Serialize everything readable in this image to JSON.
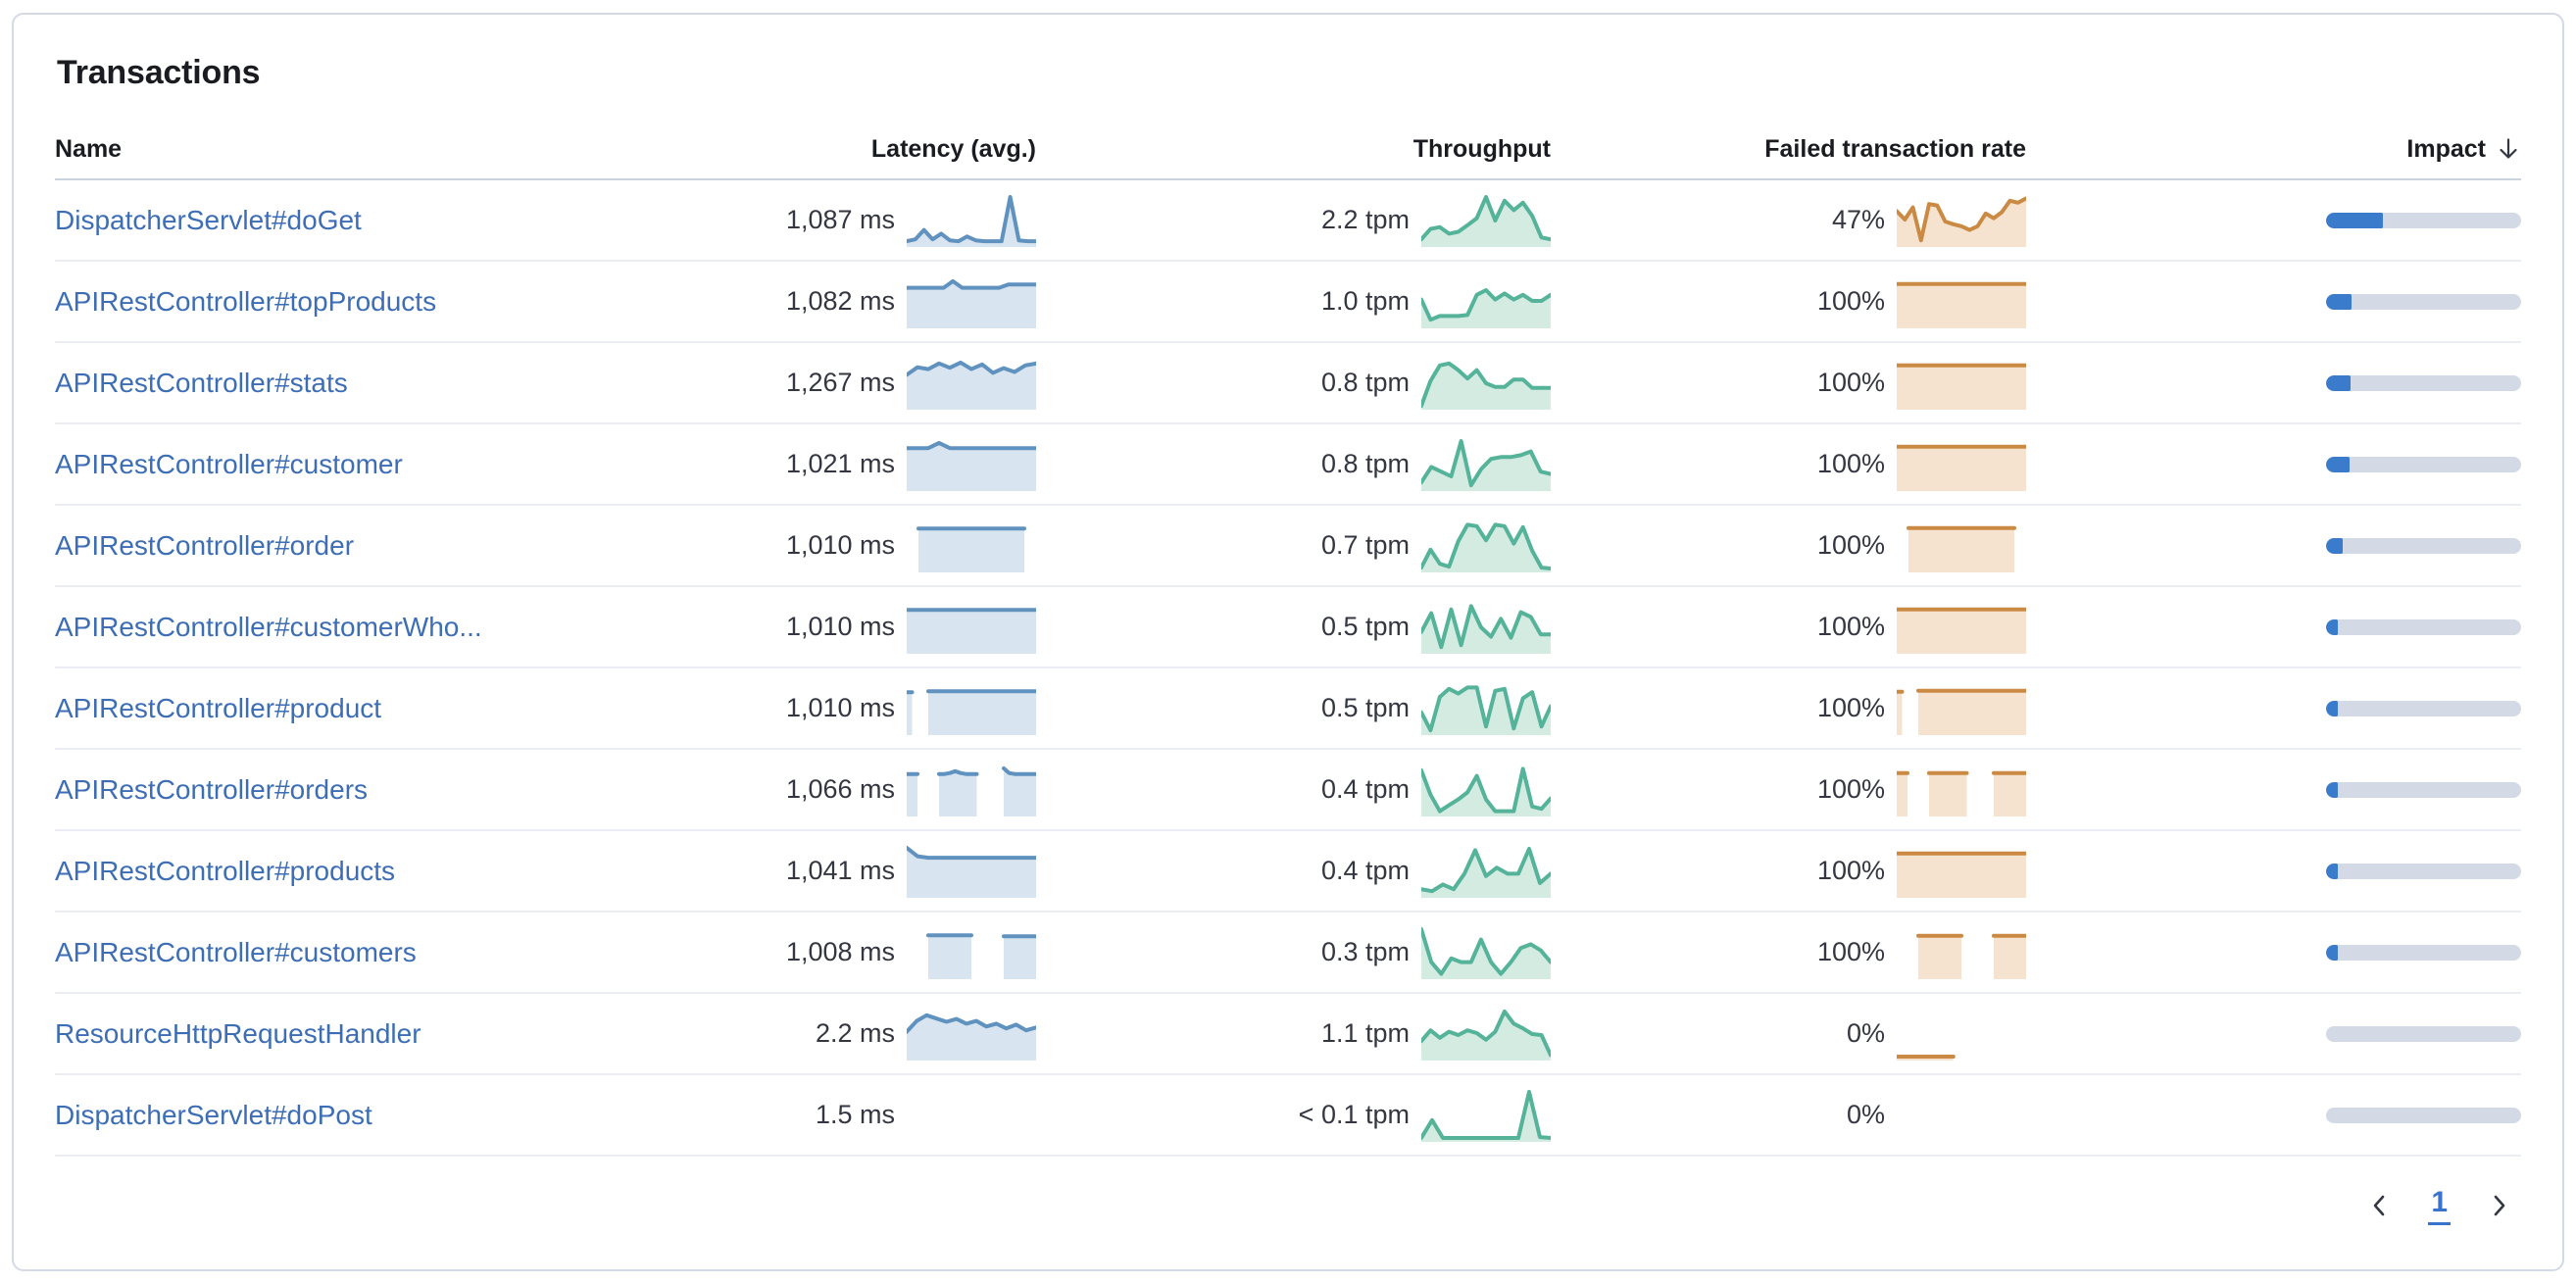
{
  "card": {
    "title": "Transactions"
  },
  "table": {
    "columns": {
      "name": "Name",
      "latency": "Latency (avg.)",
      "throughput": "Throughput",
      "failed": "Failed transaction rate",
      "impact": "Impact"
    },
    "sort": {
      "column": "impact",
      "direction": "down",
      "icon": "sort-down-arrow-icon"
    },
    "rows": [
      {
        "name": "DispatcherServlet#doGet",
        "latency": "1,087 ms",
        "throughput": "2.2 tpm",
        "failed_rate": "47%",
        "impact_pct": 29,
        "latency_spark": [
          0.06,
          0.1,
          0.3,
          0.1,
          0.22,
          0.08,
          0.06,
          0.16,
          0.08,
          0.06,
          0.06,
          0.06,
          1.0,
          0.08,
          0.06,
          0.06
        ],
        "throughput_spark": [
          0.1,
          0.32,
          0.36,
          0.22,
          0.26,
          0.4,
          0.55,
          1.0,
          0.5,
          0.92,
          0.72,
          0.88,
          0.6,
          0.14,
          0.1
        ],
        "failed_spark": [
          0.7,
          0.52,
          0.78,
          0.08,
          0.85,
          0.82,
          0.48,
          0.42,
          0.38,
          0.3,
          0.38,
          0.65,
          0.55,
          0.68,
          0.92,
          0.88,
          0.97
        ]
      },
      {
        "name": "APIRestController#topProducts",
        "latency": "1,082 ms",
        "throughput": "1.0 tpm",
        "failed_rate": "100%",
        "impact_pct": 13,
        "latency_spark": [
          0.8,
          0.8,
          0.8,
          0.8,
          0.8,
          0.94,
          0.8,
          0.8,
          0.8,
          0.8,
          0.8,
          0.87,
          0.87,
          0.87,
          0.87
        ],
        "throughput_spark": [
          0.55,
          0.12,
          0.2,
          0.2,
          0.2,
          0.22,
          0.65,
          0.75,
          0.55,
          0.68,
          0.55,
          0.65,
          0.52,
          0.52,
          0.65
        ],
        "failed_spark": [
          0.88,
          0.88,
          0.88,
          0.88,
          0.88,
          0.88,
          0.88,
          0.88,
          0.88,
          0.88,
          0.88,
          0.88,
          0.88
        ]
      },
      {
        "name": "APIRestController#stats",
        "latency": "1,267 ms",
        "throughput": "0.8 tpm",
        "failed_rate": "100%",
        "impact_pct": 12.5,
        "latency_spark": [
          0.68,
          0.84,
          0.8,
          0.92,
          0.83,
          0.94,
          0.8,
          0.9,
          0.72,
          0.82,
          0.74,
          0.88,
          0.92
        ],
        "throughput_spark": [
          0.02,
          0.55,
          0.88,
          0.92,
          0.78,
          0.6,
          0.78,
          0.5,
          0.42,
          0.42,
          0.58,
          0.58,
          0.4,
          0.4,
          0.4
        ],
        "failed_spark": [
          0.88,
          0.88,
          0.88,
          0.88,
          0.88,
          0.88,
          0.88,
          0.88,
          0.88,
          0.88,
          0.88,
          0.88,
          0.88
        ]
      },
      {
        "name": "APIRestController#customer",
        "latency": "1,021 ms",
        "throughput": "0.8 tpm",
        "failed_rate": "100%",
        "impact_pct": 12,
        "latency_spark": [
          0.85,
          0.85,
          0.85,
          0.96,
          0.85,
          0.85,
          0.85,
          0.85,
          0.85,
          0.85,
          0.85,
          0.85,
          0.85
        ],
        "throughput_spark": [
          0.12,
          0.45,
          0.35,
          0.25,
          1.0,
          0.06,
          0.4,
          0.62,
          0.66,
          0.66,
          0.7,
          0.78,
          0.35,
          0.3
        ],
        "failed_spark": [
          0.88,
          0.88,
          0.88,
          0.88,
          0.88,
          0.88,
          0.88,
          0.88,
          0.88,
          0.88,
          0.88,
          0.88,
          0.88
        ]
      },
      {
        "name": "APIRestController#order",
        "latency": "1,010 ms",
        "throughput": "0.7 tpm",
        "failed_rate": "100%",
        "impact_pct": 8.5,
        "latency_spark": [
          null,
          0.87,
          0.87,
          0.87,
          0.87,
          0.87,
          0.87,
          0.87,
          0.87,
          0.87,
          0.87,
          null
        ],
        "throughput_spark": [
          0.04,
          0.42,
          0.12,
          0.06,
          0.6,
          0.95,
          0.92,
          0.62,
          0.95,
          0.92,
          0.55,
          0.9,
          0.4,
          0.04,
          0.02
        ],
        "failed_spark": [
          null,
          0.88,
          0.88,
          0.88,
          0.88,
          0.88,
          0.88,
          0.88,
          0.88,
          0.88,
          0.88,
          null
        ]
      },
      {
        "name": "APIRestController#customerWho...",
        "latency": "1,010 ms",
        "throughput": "0.5 tpm",
        "failed_rate": "100%",
        "impact_pct": 6,
        "latency_spark": [
          0.87,
          0.87,
          0.87,
          0.87,
          0.87,
          0.87,
          0.87,
          0.87,
          0.87,
          0.87,
          0.87,
          0.87,
          0.87
        ],
        "throughput_spark": [
          0.4,
          0.8,
          0.08,
          0.88,
          0.12,
          0.95,
          0.5,
          0.3,
          0.68,
          0.28,
          0.82,
          0.72,
          0.35,
          0.35
        ],
        "failed_spark": [
          0.88,
          0.88,
          0.88,
          0.88,
          0.88,
          0.88,
          0.88,
          0.88,
          0.88,
          0.88,
          0.88,
          0.88,
          0.88
        ]
      },
      {
        "name": "APIRestController#product",
        "latency": "1,010 ms",
        "throughput": "0.5 tpm",
        "failed_rate": "100%",
        "impact_pct": 5.5,
        "latency_spark": [
          0.85,
          0.85,
          null,
          null,
          0.87,
          0.87,
          0.87,
          0.87,
          0.87,
          0.87,
          0.87,
          0.87,
          0.87,
          0.87,
          0.87,
          0.87,
          0.87,
          0.87,
          0.87,
          0.87,
          0.87,
          0.87,
          0.87,
          0.87,
          0.87
        ],
        "throughput_spark": [
          0.42,
          0.04,
          0.75,
          0.92,
          0.82,
          0.95,
          0.95,
          0.12,
          0.88,
          0.92,
          0.08,
          0.72,
          0.85,
          0.12,
          0.55
        ],
        "failed_spark": [
          0.86,
          0.86,
          null,
          null,
          0.88,
          0.88,
          0.88,
          0.88,
          0.88,
          0.88,
          0.88,
          0.88,
          0.88,
          0.88,
          0.88,
          0.88,
          0.88,
          0.88,
          0.88,
          0.88,
          0.88,
          0.88,
          0.88,
          0.88,
          0.88
        ]
      },
      {
        "name": "APIRestController#orders",
        "latency": "1,066 ms",
        "throughput": "0.4 tpm",
        "failed_rate": "100%",
        "impact_pct": 5,
        "latency_spark": [
          0.84,
          0.84,
          0.84,
          null,
          null,
          null,
          0.84,
          0.84,
          0.86,
          0.9,
          0.86,
          0.84,
          0.84,
          0.84,
          null,
          null,
          null,
          null,
          0.96,
          0.86,
          0.84,
          0.84,
          0.84,
          0.84,
          0.84
        ],
        "throughput_spark": [
          0.92,
          0.4,
          0.05,
          0.18,
          0.3,
          0.45,
          0.8,
          0.3,
          0.05,
          0.05,
          0.05,
          0.95,
          0.15,
          0.1,
          0.32
        ],
        "failed_spark": [
          0.86,
          0.86,
          0.86,
          null,
          null,
          null,
          0.86,
          0.86,
          0.86,
          0.86,
          0.86,
          0.86,
          0.86,
          0.86,
          null,
          null,
          null,
          null,
          0.86,
          0.86,
          0.86,
          0.86,
          0.86,
          0.86,
          0.86
        ]
      },
      {
        "name": "APIRestController#products",
        "latency": "1,041 ms",
        "throughput": "0.4 tpm",
        "failed_rate": "100%",
        "impact_pct": 5,
        "latency_spark": [
          1.0,
          0.82,
          0.79,
          0.79,
          0.79,
          0.79,
          0.79,
          0.79,
          0.79,
          0.79,
          0.79,
          0.79,
          0.79
        ],
        "throughput_spark": [
          0.12,
          0.08,
          0.22,
          0.12,
          0.45,
          0.95,
          0.4,
          0.58,
          0.45,
          0.45,
          0.98,
          0.25,
          0.45
        ],
        "failed_spark": [
          0.88,
          0.88,
          0.88,
          0.88,
          0.88,
          0.88,
          0.88,
          0.88,
          0.88,
          0.88,
          0.88,
          0.88,
          0.88
        ]
      },
      {
        "name": "APIRestController#customers",
        "latency": "1,008 ms",
        "throughput": "0.3 tpm",
        "failed_rate": "100%",
        "impact_pct": 4,
        "latency_spark": [
          null,
          null,
          null,
          null,
          0.87,
          0.87,
          0.87,
          0.87,
          0.87,
          0.87,
          0.87,
          0.87,
          0.87,
          null,
          null,
          null,
          null,
          null,
          0.85,
          0.85,
          0.85,
          0.85,
          0.85,
          0.85,
          0.85
        ],
        "throughput_spark": [
          1.0,
          0.3,
          0.05,
          0.38,
          0.3,
          0.3,
          0.78,
          0.3,
          0.05,
          0.3,
          0.6,
          0.68,
          0.55,
          0.3
        ],
        "failed_spark": [
          null,
          null,
          null,
          null,
          0.86,
          0.86,
          0.86,
          0.86,
          0.86,
          0.86,
          0.86,
          0.86,
          0.86,
          null,
          null,
          null,
          null,
          null,
          0.86,
          0.86,
          0.86,
          0.86,
          0.86,
          0.86,
          0.86
        ]
      },
      {
        "name": "ResourceHttpRequestHandler",
        "latency": "2.2 ms",
        "throughput": "1.1 tpm",
        "failed_rate": "0%",
        "impact_pct": 0,
        "latency_spark": [
          0.55,
          0.78,
          0.9,
          0.83,
          0.76,
          0.82,
          0.72,
          0.78,
          0.66,
          0.72,
          0.62,
          0.7,
          0.58,
          0.64
        ],
        "throughput_spark": [
          0.35,
          0.58,
          0.42,
          0.55,
          0.48,
          0.58,
          0.52,
          0.38,
          0.55,
          0.98,
          0.72,
          0.62,
          0.5,
          0.48,
          0.05
        ],
        "failed_spark": [
          0.02,
          0.02,
          0.02,
          0.02,
          0.02,
          0.02,
          0.02,
          0.02,
          null,
          null,
          null,
          null,
          null,
          null,
          null,
          null,
          null
        ]
      },
      {
        "name": "DispatcherServlet#doPost",
        "latency": "1.5 ms",
        "throughput": "< 0.1 tpm",
        "failed_rate": "0%",
        "impact_pct": 0,
        "latency_spark": [],
        "throughput_spark": [
          0.02,
          0.4,
          0.02,
          0.02,
          0.02,
          0.02,
          0.02,
          0.02,
          0.02,
          0.02,
          1.0,
          0.04,
          0.02
        ],
        "failed_spark": []
      }
    ]
  },
  "pagination": {
    "current_page": "1"
  },
  "colors": {
    "latency_line": "#6092C0",
    "latency_fill": "#D9E4F1",
    "throughput_line": "#54B399",
    "throughput_fill": "#D4EBE2",
    "failed_line": "#CB8A44",
    "failed_fill": "#F5E3D0",
    "impact_fill": "#3A7BCB",
    "impact_track": "#D3DAE6",
    "link": "#3D6EB5"
  }
}
